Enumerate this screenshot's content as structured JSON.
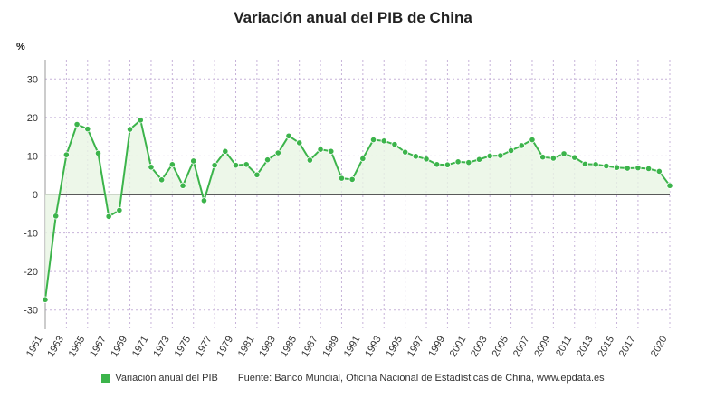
{
  "title": "Variación anual del PIB de China",
  "legend": {
    "label": "Variación anual del PIB"
  },
  "source": "Fuente: Banco Mundial, Oficina Nacional de Estadísticas de China, www.epdata.es",
  "colors": {
    "line": "#3cb44b",
    "fill": "#e8f5e3",
    "grid": "#c7b3d9",
    "zero": "#222222"
  },
  "chart_data": {
    "type": "line",
    "title": "Variación anual del PIB de China",
    "ylabel": "%",
    "xlabel": "",
    "ylim": [
      -35,
      35
    ],
    "yticks": [
      -30,
      -20,
      -10,
      0,
      10,
      20,
      30
    ],
    "grid": true,
    "legend_position": "bottom",
    "x": [
      1961,
      1962,
      1963,
      1964,
      1965,
      1966,
      1967,
      1968,
      1969,
      1970,
      1971,
      1972,
      1973,
      1974,
      1975,
      1976,
      1977,
      1978,
      1979,
      1980,
      1981,
      1982,
      1983,
      1984,
      1985,
      1986,
      1987,
      1988,
      1989,
      1990,
      1991,
      1992,
      1993,
      1994,
      1995,
      1996,
      1997,
      1998,
      1999,
      2000,
      2001,
      2002,
      2003,
      2004,
      2005,
      2006,
      2007,
      2008,
      2009,
      2010,
      2011,
      2012,
      2013,
      2014,
      2015,
      2016,
      2017,
      2018,
      2019,
      2020
    ],
    "xtick_labels": [
      1961,
      1963,
      1965,
      1967,
      1969,
      1971,
      1973,
      1975,
      1977,
      1979,
      1981,
      1983,
      1985,
      1987,
      1989,
      1991,
      1993,
      1995,
      1997,
      1999,
      2001,
      2003,
      2005,
      2007,
      2009,
      2011,
      2013,
      2015,
      2017,
      2020
    ],
    "series": [
      {
        "name": "Variación anual del PIB",
        "values": [
          -27.3,
          -5.6,
          10.3,
          18.2,
          17.0,
          10.7,
          -5.7,
          -4.1,
          16.9,
          19.3,
          7.1,
          3.8,
          7.8,
          2.3,
          8.7,
          -1.6,
          7.6,
          11.2,
          7.6,
          7.8,
          5.1,
          9.0,
          10.8,
          15.2,
          13.4,
          8.9,
          11.7,
          11.2,
          4.2,
          3.9,
          9.3,
          14.2,
          13.9,
          13.0,
          11.0,
          9.9,
          9.2,
          7.8,
          7.7,
          8.5,
          8.3,
          9.1,
          10.0,
          10.1,
          11.4,
          12.7,
          14.2,
          9.7,
          9.4,
          10.6,
          9.6,
          7.9,
          7.8,
          7.4,
          7.0,
          6.8,
          6.9,
          6.7,
          6.0,
          2.3
        ]
      }
    ]
  }
}
